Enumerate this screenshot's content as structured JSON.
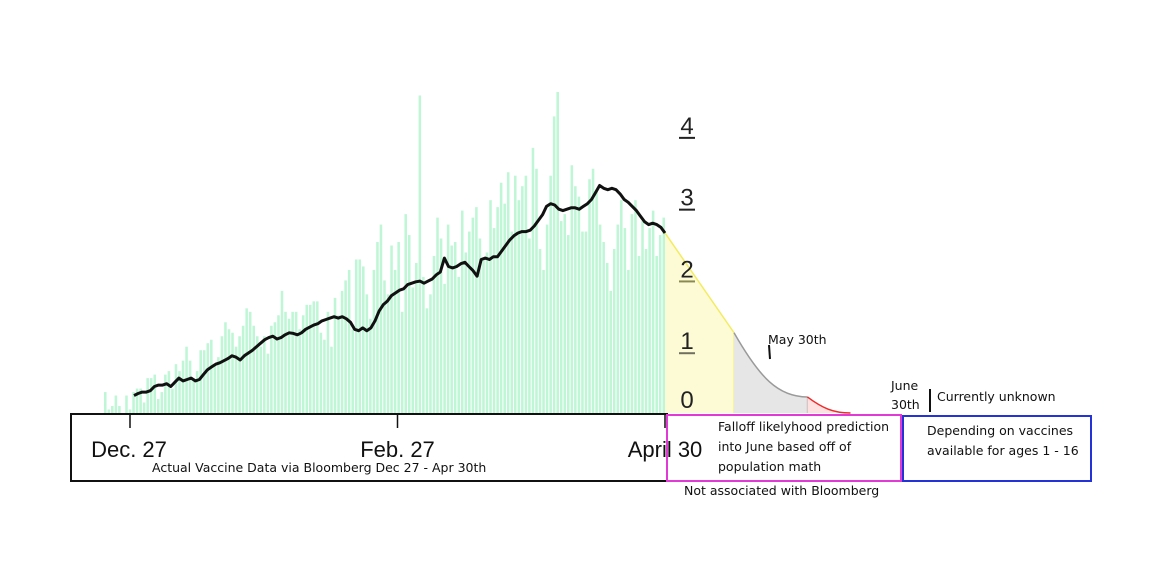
{
  "chart_data": {
    "type": "bar",
    "y_ticks": [
      {
        "label": "4",
        "value": 4,
        "color": "#222222"
      },
      {
        "label": "3",
        "value": 3,
        "color": "#222222"
      },
      {
        "label": "2",
        "value": 2,
        "color": "#8a8a50"
      },
      {
        "label": "1",
        "value": 1,
        "color": "#6f6f5f"
      },
      {
        "label": "0",
        "value": 0,
        "color": "#6f6f6f"
      }
    ],
    "ylim": [
      0,
      4.6
    ],
    "x_ticks": [
      {
        "label": "Dec. 27",
        "day": 1
      },
      {
        "label": "Feb. 27",
        "day": 63
      },
      {
        "label": "April 30",
        "day": 125
      }
    ],
    "daily_doses": [
      0.3,
      0.05,
      0.1,
      0.25,
      0.1,
      0,
      0.25,
      0.05,
      0.3,
      0.35,
      0.35,
      0.15,
      0.5,
      0.5,
      0.55,
      0.2,
      0.3,
      0.55,
      0.6,
      0.35,
      0.7,
      0.6,
      0.75,
      0.95,
      0.75,
      0.5,
      0.6,
      0.9,
      0.9,
      1,
      1.05,
      0.7,
      0.8,
      1.1,
      1.3,
      1.2,
      1.15,
      0.95,
      1.1,
      1.25,
      1.5,
      1.45,
      1.25,
      1.1,
      0.95,
      1.1,
      0.85,
      1.25,
      1.3,
      1.4,
      1.75,
      1.45,
      1.35,
      1.45,
      1.45,
      1.2,
      1.4,
      1.55,
      1.55,
      1.6,
      1.6,
      1.15,
      1.05,
      1.45,
      0.95,
      1.65,
      1.4,
      1.75,
      1.9,
      2.05,
      1.2,
      2.2,
      2.2,
      2.1,
      1.7,
      1.35,
      2.05,
      2.45,
      2.7,
      1.9,
      1.7,
      2.4,
      2.05,
      2.45,
      1.45,
      2.85,
      2.55,
      1.8,
      2.15,
      4.55,
      1.95,
      1.5,
      1.7,
      2.25,
      2.8,
      2.5,
      1.85,
      2.7,
      2.4,
      2.45,
      1.95,
      2.9,
      2.3,
      2.6,
      2.8,
      2.95,
      2.5,
      2.2,
      2.3,
      3.05,
      2.65,
      2.95,
      3.3,
      3,
      3.45,
      2.6,
      3.4,
      3.05,
      3.25,
      3.4,
      2.5,
      3.8,
      3.5,
      2.35,
      2.05,
      2.7,
      3.4,
      4.25,
      4.6,
      2.75,
      2.85,
      2.55,
      3.55,
      3.25,
      3.1,
      2.6,
      2.6,
      3.35,
      3.5,
      3.2,
      2.7,
      2.45,
      2.15,
      1.75,
      2.35,
      2.7,
      3.05,
      2.65,
      2.05,
      2.85,
      3.05,
      2.25,
      2.75,
      2.35,
      2.65,
      2.9,
      2.25,
      2.55,
      2.8
    ],
    "moving_average": [
      0.25,
      0.28,
      0.3,
      0.3,
      0.32,
      0.38,
      0.4,
      0.4,
      0.42,
      0.38,
      0.44,
      0.5,
      0.46,
      0.48,
      0.5,
      0.46,
      0.48,
      0.55,
      0.62,
      0.66,
      0.7,
      0.72,
      0.75,
      0.78,
      0.82,
      0.8,
      0.76,
      0.82,
      0.86,
      0.9,
      0.95,
      1.0,
      1.05,
      1.08,
      1.1,
      1.06,
      1.08,
      1.12,
      1.15,
      1.14,
      1.12,
      1.15,
      1.2,
      1.23,
      1.26,
      1.28,
      1.32,
      1.34,
      1.36,
      1.38,
      1.36,
      1.38,
      1.35,
      1.3,
      1.2,
      1.18,
      1.22,
      1.18,
      1.22,
      1.32,
      1.46,
      1.55,
      1.6,
      1.68,
      1.72,
      1.76,
      1.78,
      1.84,
      1.86,
      1.88,
      1.89,
      1.86,
      1.89,
      1.92,
      1.98,
      2.02,
      2.22,
      2.1,
      2.08,
      2.1,
      2.14,
      2.16,
      2.1,
      2.04,
      1.96,
      2.2,
      2.22,
      2.2,
      2.24,
      2.24,
      2.32,
      2.4,
      2.48,
      2.54,
      2.58,
      2.6,
      2.6,
      2.62,
      2.68,
      2.76,
      2.84,
      2.96,
      3.0,
      2.98,
      2.92,
      2.9,
      2.92,
      2.94,
      2.94,
      2.92,
      2.96,
      3.0,
      3.06,
      3.16,
      3.26,
      3.22,
      3.2,
      3.22,
      3.2,
      3.14,
      3.06,
      3.02,
      2.96,
      2.9,
      2.82,
      2.74,
      2.7,
      2.72,
      2.7,
      2.66,
      2.58
    ],
    "projection_segments": [
      {
        "start_day": 125,
        "end_day": 141,
        "start_value": 2.58,
        "end_value": 1.15,
        "color": "#f3ec60",
        "fill": "#fdfbd5"
      },
      {
        "start_day": 141,
        "end_day": 158,
        "start_value": 1.15,
        "end_value": 0.23,
        "color": "#9a9a9a",
        "fill": "#e6e6e6"
      },
      {
        "start_day": 158,
        "end_day": 168,
        "start_value": 0.23,
        "end_value": 0.0,
        "color": "#ef2a2a",
        "fill": "#fde1e1"
      }
    ],
    "bar_color": "#bff6d6",
    "line_color": "#111111"
  },
  "annotations": {
    "may_label": "May 30th",
    "june_label_line1": "June",
    "june_label_line2": "30th",
    "unknown_label": "Currently unknown"
  },
  "boxes": {
    "actual": {
      "caption": "Actual Vaccine Data via Bloomberg Dec 27 - Apr 30th",
      "border_color": "#111111"
    },
    "falloff": {
      "line1": "Falloff likelyhood prediction",
      "line2": "into June based off of",
      "line3": "population math",
      "border_color": "#e23bd5"
    },
    "falloff_note": "Not associated with Bloomberg",
    "unknown": {
      "line1": "Depending on vaccines",
      "line2": "available for ages 1 - 16",
      "border_color": "#2433d8"
    }
  }
}
